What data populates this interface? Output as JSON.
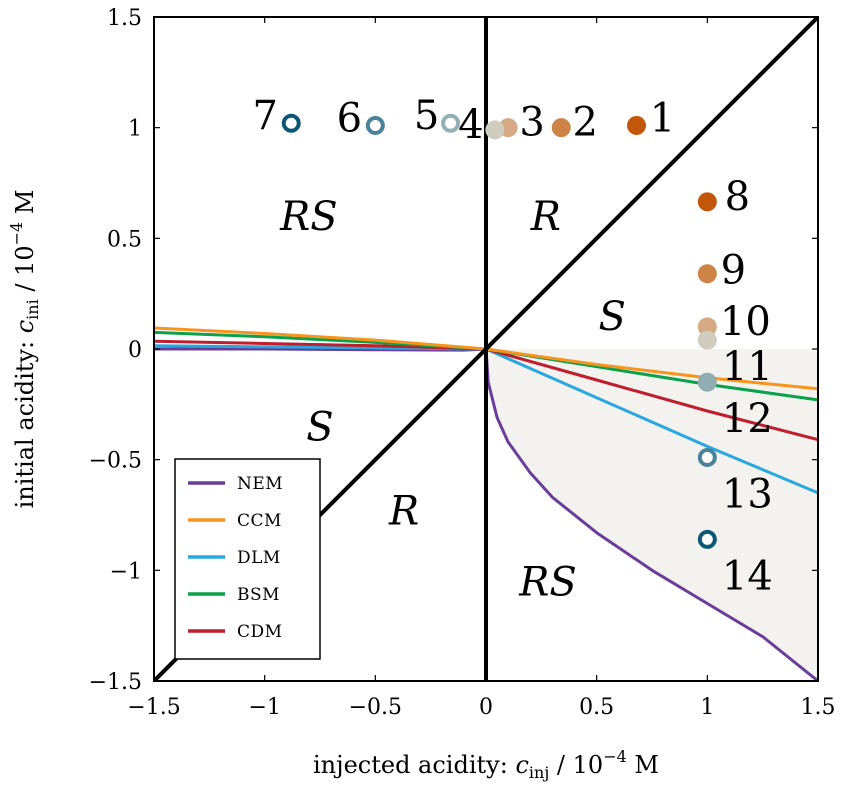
{
  "chart_data": {
    "type": "line",
    "xlabel": "injected acidity: c_inj / 10^−4 M",
    "ylabel": "initial acidity: c_ini / 10^−4 M",
    "xlim": [
      -1.5,
      1.5
    ],
    "ylim": [
      -1.5,
      1.5
    ],
    "x_ticks": [
      "−1.5",
      "−1",
      "−0.5",
      "0",
      "0.5",
      "1",
      "1.5"
    ],
    "y_ticks": [
      "−1.5",
      "−1",
      "−0.5",
      "0",
      "0.5",
      "1",
      "1.5"
    ],
    "grid": false,
    "legend_position": "bottom-left",
    "shaded_region": {
      "description": "between NEM curve and c_ini = 0 line for c_inj > 0",
      "color": "#f3f2ee"
    },
    "boundaries": [
      {
        "points": [
          [
            -1.5,
            -1.5
          ],
          [
            1.5,
            1.5
          ]
        ],
        "color": "#000000"
      },
      {
        "points": [
          [
            0,
            -1.5
          ],
          [
            0,
            1.5
          ]
        ],
        "color": "#000000"
      }
    ],
    "series": [
      {
        "name": "NEM",
        "color": "#6a3d9a",
        "x": [
          -1.5,
          -1.0,
          -0.5,
          -0.1,
          0,
          0.01,
          0.05,
          0.1,
          0.2,
          0.3,
          0.5,
          0.75,
          1.0,
          1.25,
          1.5
        ],
        "y": [
          0.0,
          0.0,
          -0.003,
          -0.005,
          0,
          -0.15,
          -0.31,
          -0.42,
          -0.56,
          -0.67,
          -0.83,
          -1.0,
          -1.15,
          -1.3,
          -1.5
        ]
      },
      {
        "name": "CCM",
        "color": "#f7941d",
        "x": [
          -1.5,
          -1.0,
          -0.5,
          0,
          0.5,
          1.0,
          1.5
        ],
        "y": [
          0.095,
          0.07,
          0.04,
          0,
          -0.07,
          -0.13,
          -0.18
        ]
      },
      {
        "name": "DLM",
        "color": "#29a8e0",
        "x": [
          -1.5,
          -1.0,
          -0.5,
          0,
          0.5,
          1.0,
          1.5
        ],
        "y": [
          0.015,
          0.01,
          0.005,
          0,
          -0.22,
          -0.44,
          -0.65
        ]
      },
      {
        "name": "BSM",
        "color": "#0aa14a",
        "x": [
          -1.5,
          -1.0,
          -0.5,
          0,
          0.5,
          1.0,
          1.5
        ],
        "y": [
          0.075,
          0.055,
          0.03,
          0,
          -0.08,
          -0.16,
          -0.23
        ]
      },
      {
        "name": "CDM",
        "color": "#be1e2d",
        "x": [
          -1.5,
          -1.0,
          -0.5,
          0,
          0.5,
          1.0,
          1.5
        ],
        "y": [
          0.035,
          0.025,
          0.015,
          0,
          -0.14,
          -0.28,
          -0.41
        ]
      }
    ],
    "points": [
      {
        "label": "1",
        "x": 0.68,
        "y": 1.01,
        "color": "#c2570c",
        "filled": true
      },
      {
        "label": "2",
        "x": 0.34,
        "y": 1.0,
        "color": "#cd8446",
        "filled": true
      },
      {
        "label": "3",
        "x": 0.1,
        "y": 1.0,
        "color": "#d4a984",
        "filled": true
      },
      {
        "label": "4",
        "x": 0.04,
        "y": 0.99,
        "color": "#d0cdbf",
        "filled": true
      },
      {
        "label": "5",
        "x": -0.16,
        "y": 1.02,
        "color": "#93b0b4",
        "filled": false
      },
      {
        "label": "6",
        "x": -0.5,
        "y": 1.01,
        "color": "#4a8399",
        "filled": false
      },
      {
        "label": "7",
        "x": -0.88,
        "y": 1.02,
        "color": "#0d5775",
        "filled": false
      },
      {
        "label": "8",
        "x": 1.0,
        "y": 0.665,
        "color": "#c2570c",
        "filled": true
      },
      {
        "label": "9",
        "x": 1.0,
        "y": 0.34,
        "color": "#cd8446",
        "filled": true
      },
      {
        "label": "10",
        "x": 1.0,
        "y": 0.1,
        "color": "#d4a984",
        "filled": true
      },
      {
        "label": "11",
        "x": 1.0,
        "y": 0.04,
        "color": "#d0cdbf",
        "filled": true
      },
      {
        "label": "12",
        "x": 1.0,
        "y": -0.15,
        "color": "#8fadb3",
        "filled": true
      },
      {
        "label": "13",
        "x": 1.0,
        "y": -0.49,
        "color": "#4a8399",
        "filled": false
      },
      {
        "label": "14",
        "x": 1.0,
        "y": -0.86,
        "color": "#0d5775",
        "filled": false
      }
    ],
    "region_labels": [
      {
        "text": "RS",
        "x": -0.8,
        "y": 0.6
      },
      {
        "text": "R",
        "x": 0.27,
        "y": 0.6
      },
      {
        "text": "S",
        "x": 0.57,
        "y": 0.15
      },
      {
        "text": "S",
        "x": -0.75,
        "y": -0.35
      },
      {
        "text": "R",
        "x": -0.37,
        "y": -0.73
      },
      {
        "text": "RS",
        "x": 0.28,
        "y": -1.05
      }
    ]
  }
}
